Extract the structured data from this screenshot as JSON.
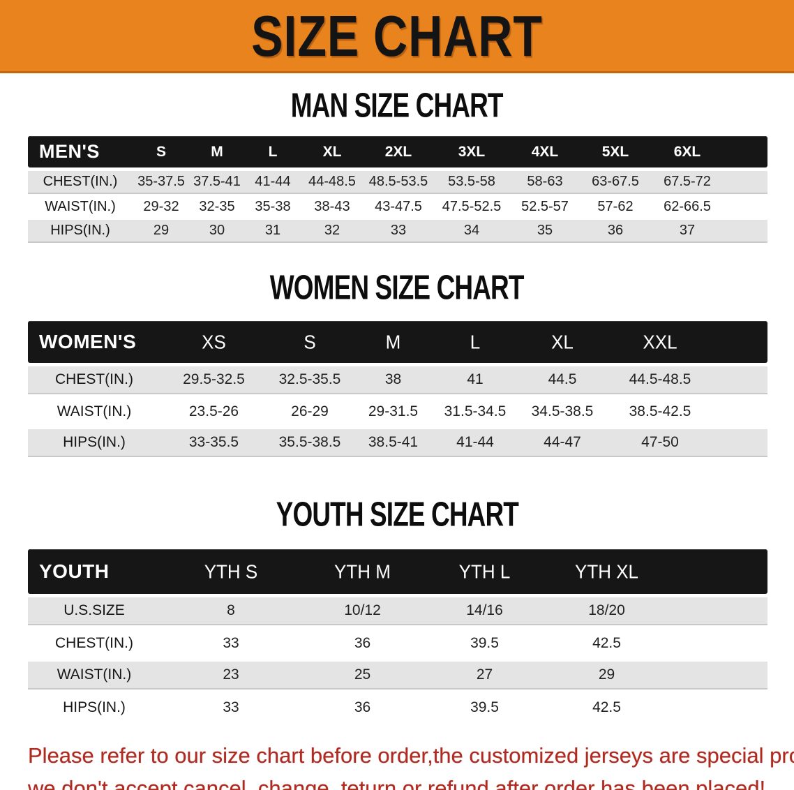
{
  "banner": {
    "title": "SIZE CHART",
    "bg_color": "#E8831E"
  },
  "men": {
    "heading": "MAN SIZE CHART",
    "header": {
      "label": "MEN'S",
      "sizes": [
        "S",
        "M",
        "L",
        "XL",
        "2XL",
        "3XL",
        "4XL",
        "5XL",
        "6XL"
      ]
    },
    "rows": [
      {
        "label": "CHEST(IN.)",
        "values": [
          "35-37.5",
          "37.5-41",
          "41-44",
          "44-48.5",
          "48.5-53.5",
          "53.5-58",
          "58-63",
          "63-67.5",
          "67.5-72"
        ]
      },
      {
        "label": "WAIST(IN.)",
        "values": [
          "29-32",
          "32-35",
          "35-38",
          "38-43",
          "43-47.5",
          "47.5-52.5",
          "52.5-57",
          "57-62",
          "62-66.5"
        ]
      },
      {
        "label": "HIPS(IN.)",
        "values": [
          "29",
          "30",
          "31",
          "32",
          "33",
          "34",
          "35",
          "36",
          "37"
        ]
      }
    ]
  },
  "women": {
    "heading": "WOMEN SIZE CHART",
    "header": {
      "label": "WOMEN'S",
      "sizes": [
        "XS",
        "S",
        "M",
        "L",
        "XL",
        "XXL"
      ]
    },
    "rows": [
      {
        "label": "CHEST(IN.)",
        "values": [
          "29.5-32.5",
          "32.5-35.5",
          "38",
          "41",
          "44.5",
          "44.5-48.5"
        ]
      },
      {
        "label": "WAIST(IN.)",
        "values": [
          "23.5-26",
          "26-29",
          "29-31.5",
          "31.5-34.5",
          "34.5-38.5",
          "38.5-42.5"
        ]
      },
      {
        "label": "HIPS(IN.)",
        "values": [
          "33-35.5",
          "35.5-38.5",
          "38.5-41",
          "41-44",
          "44-47",
          "47-50"
        ]
      }
    ]
  },
  "youth": {
    "heading": "YOUTH SIZE CHART",
    "header": {
      "label": "YOUTH",
      "sizes": [
        "YTH S",
        "YTH M",
        "YTH L",
        "YTH XL"
      ]
    },
    "rows": [
      {
        "label": "U.S.SIZE",
        "values": [
          "8",
          "10/12",
          "14/16",
          "18/20"
        ]
      },
      {
        "label": "CHEST(IN.)",
        "values": [
          "33",
          "36",
          "39.5",
          "42.5"
        ]
      },
      {
        "label": "WAIST(IN.)",
        "values": [
          "23",
          "25",
          "27",
          "29"
        ]
      },
      {
        "label": "HIPS(IN.)",
        "values": [
          "33",
          "36",
          "39.5",
          "42.5"
        ]
      }
    ]
  },
  "footer_note": {
    "line1": "Please refer to our size chart before order,the customized jerseys are special products,",
    "line2": "we don't accept cancel, change, teturn or refund after order has been placed!",
    "color": "#B02A20"
  }
}
